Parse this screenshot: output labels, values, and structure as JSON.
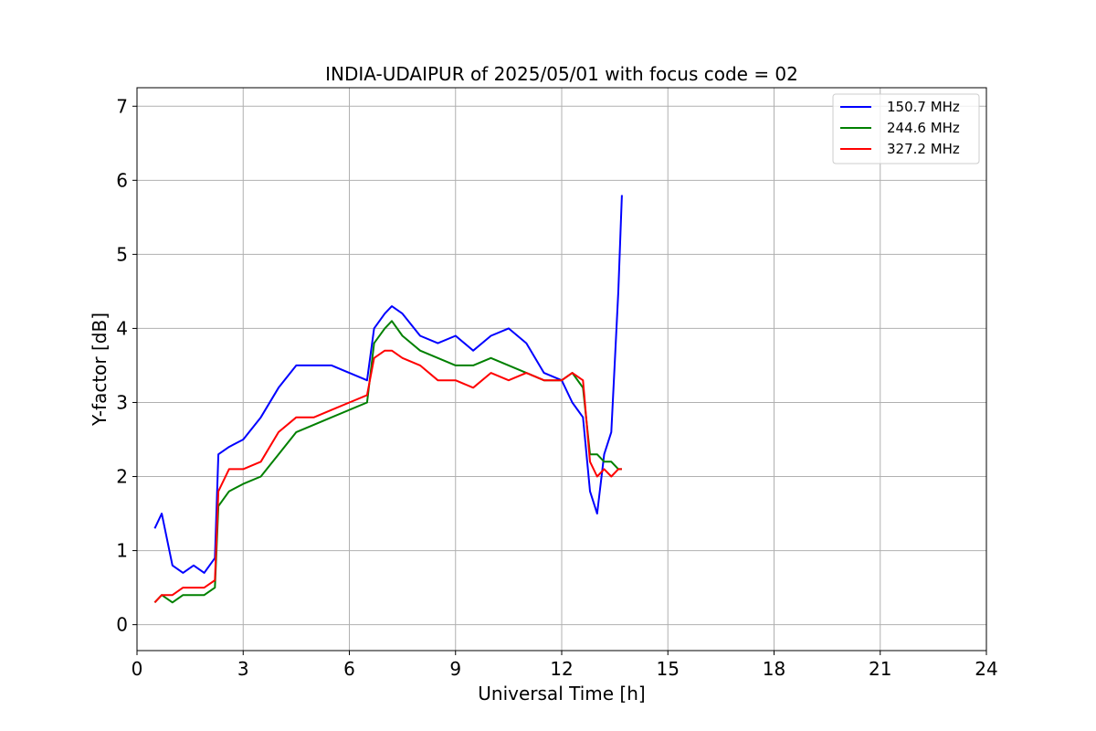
{
  "chart_data": {
    "type": "line",
    "title": "INDIA-UDAIPUR of 2025/05/01 with focus code = 02",
    "xlabel": "Universal Time [h]",
    "ylabel": "Y-factor [dB]",
    "xlim": [
      0,
      24
    ],
    "ylim": [
      -0.35,
      7.25
    ],
    "xticks": [
      0,
      3,
      6,
      9,
      12,
      15,
      18,
      21,
      24
    ],
    "yticks": [
      0,
      1,
      2,
      3,
      4,
      5,
      6,
      7
    ],
    "grid": true,
    "legend_position": "top-right",
    "series": [
      {
        "name": "150.7 MHz",
        "color": "#0000ff",
        "x": [
          0.5,
          0.7,
          1.0,
          1.3,
          1.6,
          1.9,
          2.2,
          2.3,
          2.6,
          3.0,
          3.5,
          4.0,
          4.5,
          5.0,
          5.5,
          6.0,
          6.5,
          6.7,
          7.0,
          7.2,
          7.5,
          8.0,
          8.5,
          9.0,
          9.5,
          10.0,
          10.5,
          11.0,
          11.5,
          12.0,
          12.3,
          12.6,
          12.8,
          13.0,
          13.2,
          13.4,
          13.6,
          13.7
        ],
        "y": [
          1.3,
          1.5,
          0.8,
          0.7,
          0.8,
          0.7,
          0.9,
          2.3,
          2.4,
          2.5,
          2.8,
          3.2,
          3.5,
          3.5,
          3.5,
          3.4,
          3.3,
          4.0,
          4.2,
          4.3,
          4.2,
          3.9,
          3.8,
          3.9,
          3.7,
          3.9,
          4.0,
          3.8,
          3.4,
          3.3,
          3.0,
          2.8,
          1.8,
          1.5,
          2.3,
          2.6,
          4.5,
          5.8
        ]
      },
      {
        "name": "244.6 MHz",
        "color": "#008000",
        "x": [
          0.5,
          0.7,
          1.0,
          1.3,
          1.6,
          1.9,
          2.2,
          2.3,
          2.6,
          3.0,
          3.5,
          4.0,
          4.5,
          5.0,
          5.5,
          6.0,
          6.5,
          6.7,
          7.0,
          7.2,
          7.5,
          8.0,
          8.5,
          9.0,
          9.5,
          10.0,
          10.5,
          11.0,
          11.5,
          12.0,
          12.3,
          12.6,
          12.8,
          13.0,
          13.2,
          13.4,
          13.6,
          13.7
        ],
        "y": [
          0.3,
          0.4,
          0.3,
          0.4,
          0.4,
          0.4,
          0.5,
          1.6,
          1.8,
          1.9,
          2.0,
          2.3,
          2.6,
          2.7,
          2.8,
          2.9,
          3.0,
          3.8,
          4.0,
          4.1,
          3.9,
          3.7,
          3.6,
          3.5,
          3.5,
          3.6,
          3.5,
          3.4,
          3.3,
          3.3,
          3.4,
          3.2,
          2.3,
          2.3,
          2.2,
          2.2,
          2.1,
          2.1
        ]
      },
      {
        "name": "327.2 MHz",
        "color": "#ff0000",
        "x": [
          0.5,
          0.7,
          1.0,
          1.3,
          1.6,
          1.9,
          2.2,
          2.3,
          2.6,
          3.0,
          3.5,
          4.0,
          4.5,
          5.0,
          5.5,
          6.0,
          6.5,
          6.7,
          7.0,
          7.2,
          7.5,
          8.0,
          8.5,
          9.0,
          9.5,
          10.0,
          10.5,
          11.0,
          11.5,
          12.0,
          12.3,
          12.6,
          12.8,
          13.0,
          13.2,
          13.4,
          13.6,
          13.7
        ],
        "y": [
          0.3,
          0.4,
          0.4,
          0.5,
          0.5,
          0.5,
          0.6,
          1.8,
          2.1,
          2.1,
          2.2,
          2.6,
          2.8,
          2.8,
          2.9,
          3.0,
          3.1,
          3.6,
          3.7,
          3.7,
          3.6,
          3.5,
          3.3,
          3.3,
          3.2,
          3.4,
          3.3,
          3.4,
          3.3,
          3.3,
          3.4,
          3.3,
          2.2,
          2.0,
          2.1,
          2.0,
          2.1,
          2.1
        ]
      }
    ]
  }
}
